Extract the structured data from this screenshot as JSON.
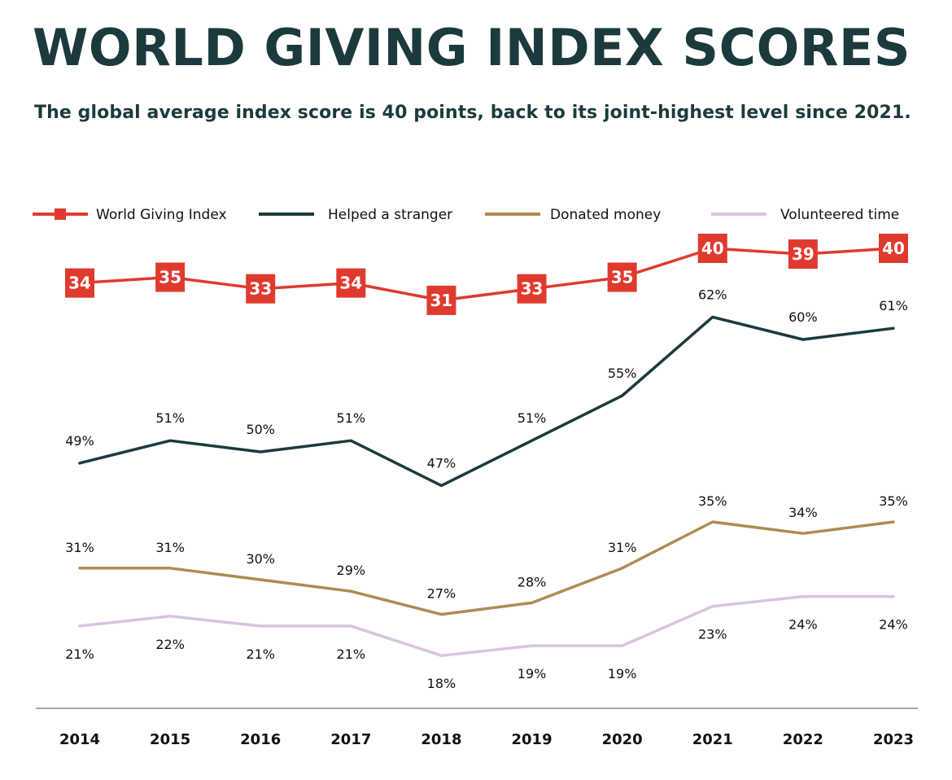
{
  "title": "WORLD GIVING INDEX SCORES",
  "subtitle": "The global average index score is 40 points, back to its joint-highest level since 2021.",
  "colors": {
    "wgi": "#e03a2f",
    "helped": "#1c3a3e",
    "donated": "#b08b55",
    "volunteered": "#d9c4de",
    "axis": "#888888"
  },
  "chart_data": {
    "type": "line",
    "title": "WORLD GIVING INDEX SCORES",
    "x": [
      "2014",
      "2015",
      "2016",
      "2017",
      "2018",
      "2019",
      "2020",
      "2021",
      "2022",
      "2023"
    ],
    "legend_position": "top",
    "series": [
      {
        "name": "World Giving Index",
        "key": "wgi",
        "values": [
          34,
          35,
          33,
          34,
          31,
          33,
          35,
          40,
          39,
          40
        ],
        "labels": [
          "34",
          "35",
          "33",
          "34",
          "31",
          "33",
          "35",
          "40",
          "39",
          "40"
        ]
      },
      {
        "name": "Helped a stranger",
        "key": "helped",
        "values": [
          49,
          51,
          50,
          51,
          47,
          51,
          55,
          62,
          60,
          61
        ],
        "labels": [
          "49%",
          "51%",
          "50%",
          "51%",
          "47%",
          "51%",
          "55%",
          "62%",
          "60%",
          "61%"
        ]
      },
      {
        "name": "Donated money",
        "key": "donated",
        "values": [
          31,
          31,
          30,
          29,
          27,
          28,
          31,
          35,
          34,
          35
        ],
        "labels": [
          "31%",
          "31%",
          "30%",
          "29%",
          "27%",
          "28%",
          "31%",
          "35%",
          "34%",
          "35%"
        ]
      },
      {
        "name": "Volunteered time",
        "key": "volunteered",
        "values": [
          21,
          22,
          21,
          21,
          18,
          19,
          19,
          23,
          24,
          24
        ],
        "labels": [
          "21%",
          "22%",
          "21%",
          "21%",
          "18%",
          "19%",
          "19%",
          "23%",
          "24%",
          "24%"
        ]
      }
    ]
  }
}
